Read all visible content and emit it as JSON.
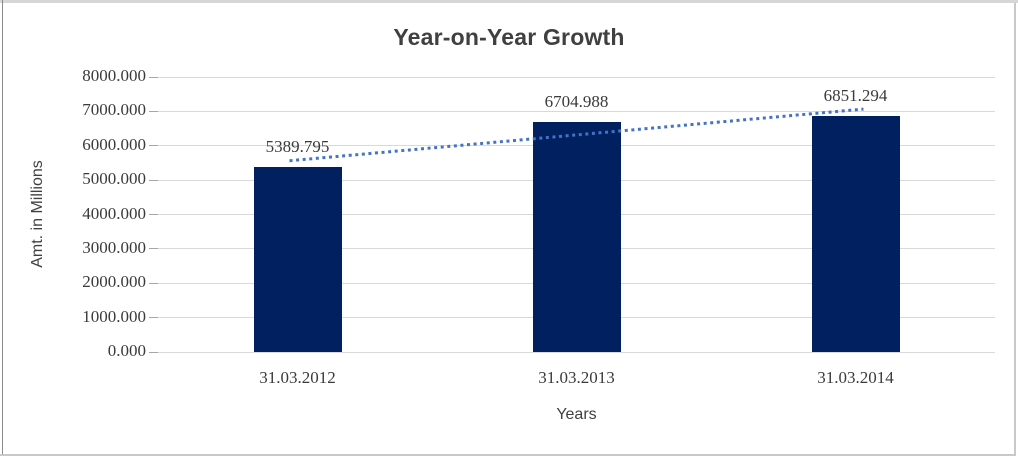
{
  "colors": {
    "bar": "#002060",
    "trendline": "#4472C4",
    "gridline": "#D9D9D9",
    "tick_mark": "#A6A6A6",
    "title_text": "#404040",
    "label_text": "#3A3A3A",
    "axis_title_text": "#404040",
    "frame_top": "#D6D6D6",
    "frame_left": "#8A8A8A",
    "frame_right": "#C9C9C9",
    "frame_bottom": "#C9C9C9",
    "background": "#FFFFFF"
  },
  "chart_data": {
    "type": "bar",
    "title": "Year-on-Year Growth",
    "xlabel": "Years",
    "ylabel": "Amt. in Millions",
    "categories": [
      "31.03.2012",
      "31.03.2013",
      "31.03.2014"
    ],
    "values": [
      5389.795,
      6704.988,
      6851.294
    ],
    "data_labels": [
      "5389.795",
      "6704.988",
      "6851.294"
    ],
    "ylim": [
      0,
      8000
    ],
    "ytick_interval": 1000,
    "ytick_labels": [
      "8000.000",
      "7000.000",
      "6000.000",
      "5000.000",
      "4000.000",
      "3000.000",
      "2000.000",
      "1000.000",
      "0.000"
    ],
    "grid": true,
    "legend": false,
    "trendline": {
      "kind": "linear",
      "style": "dotted"
    }
  }
}
